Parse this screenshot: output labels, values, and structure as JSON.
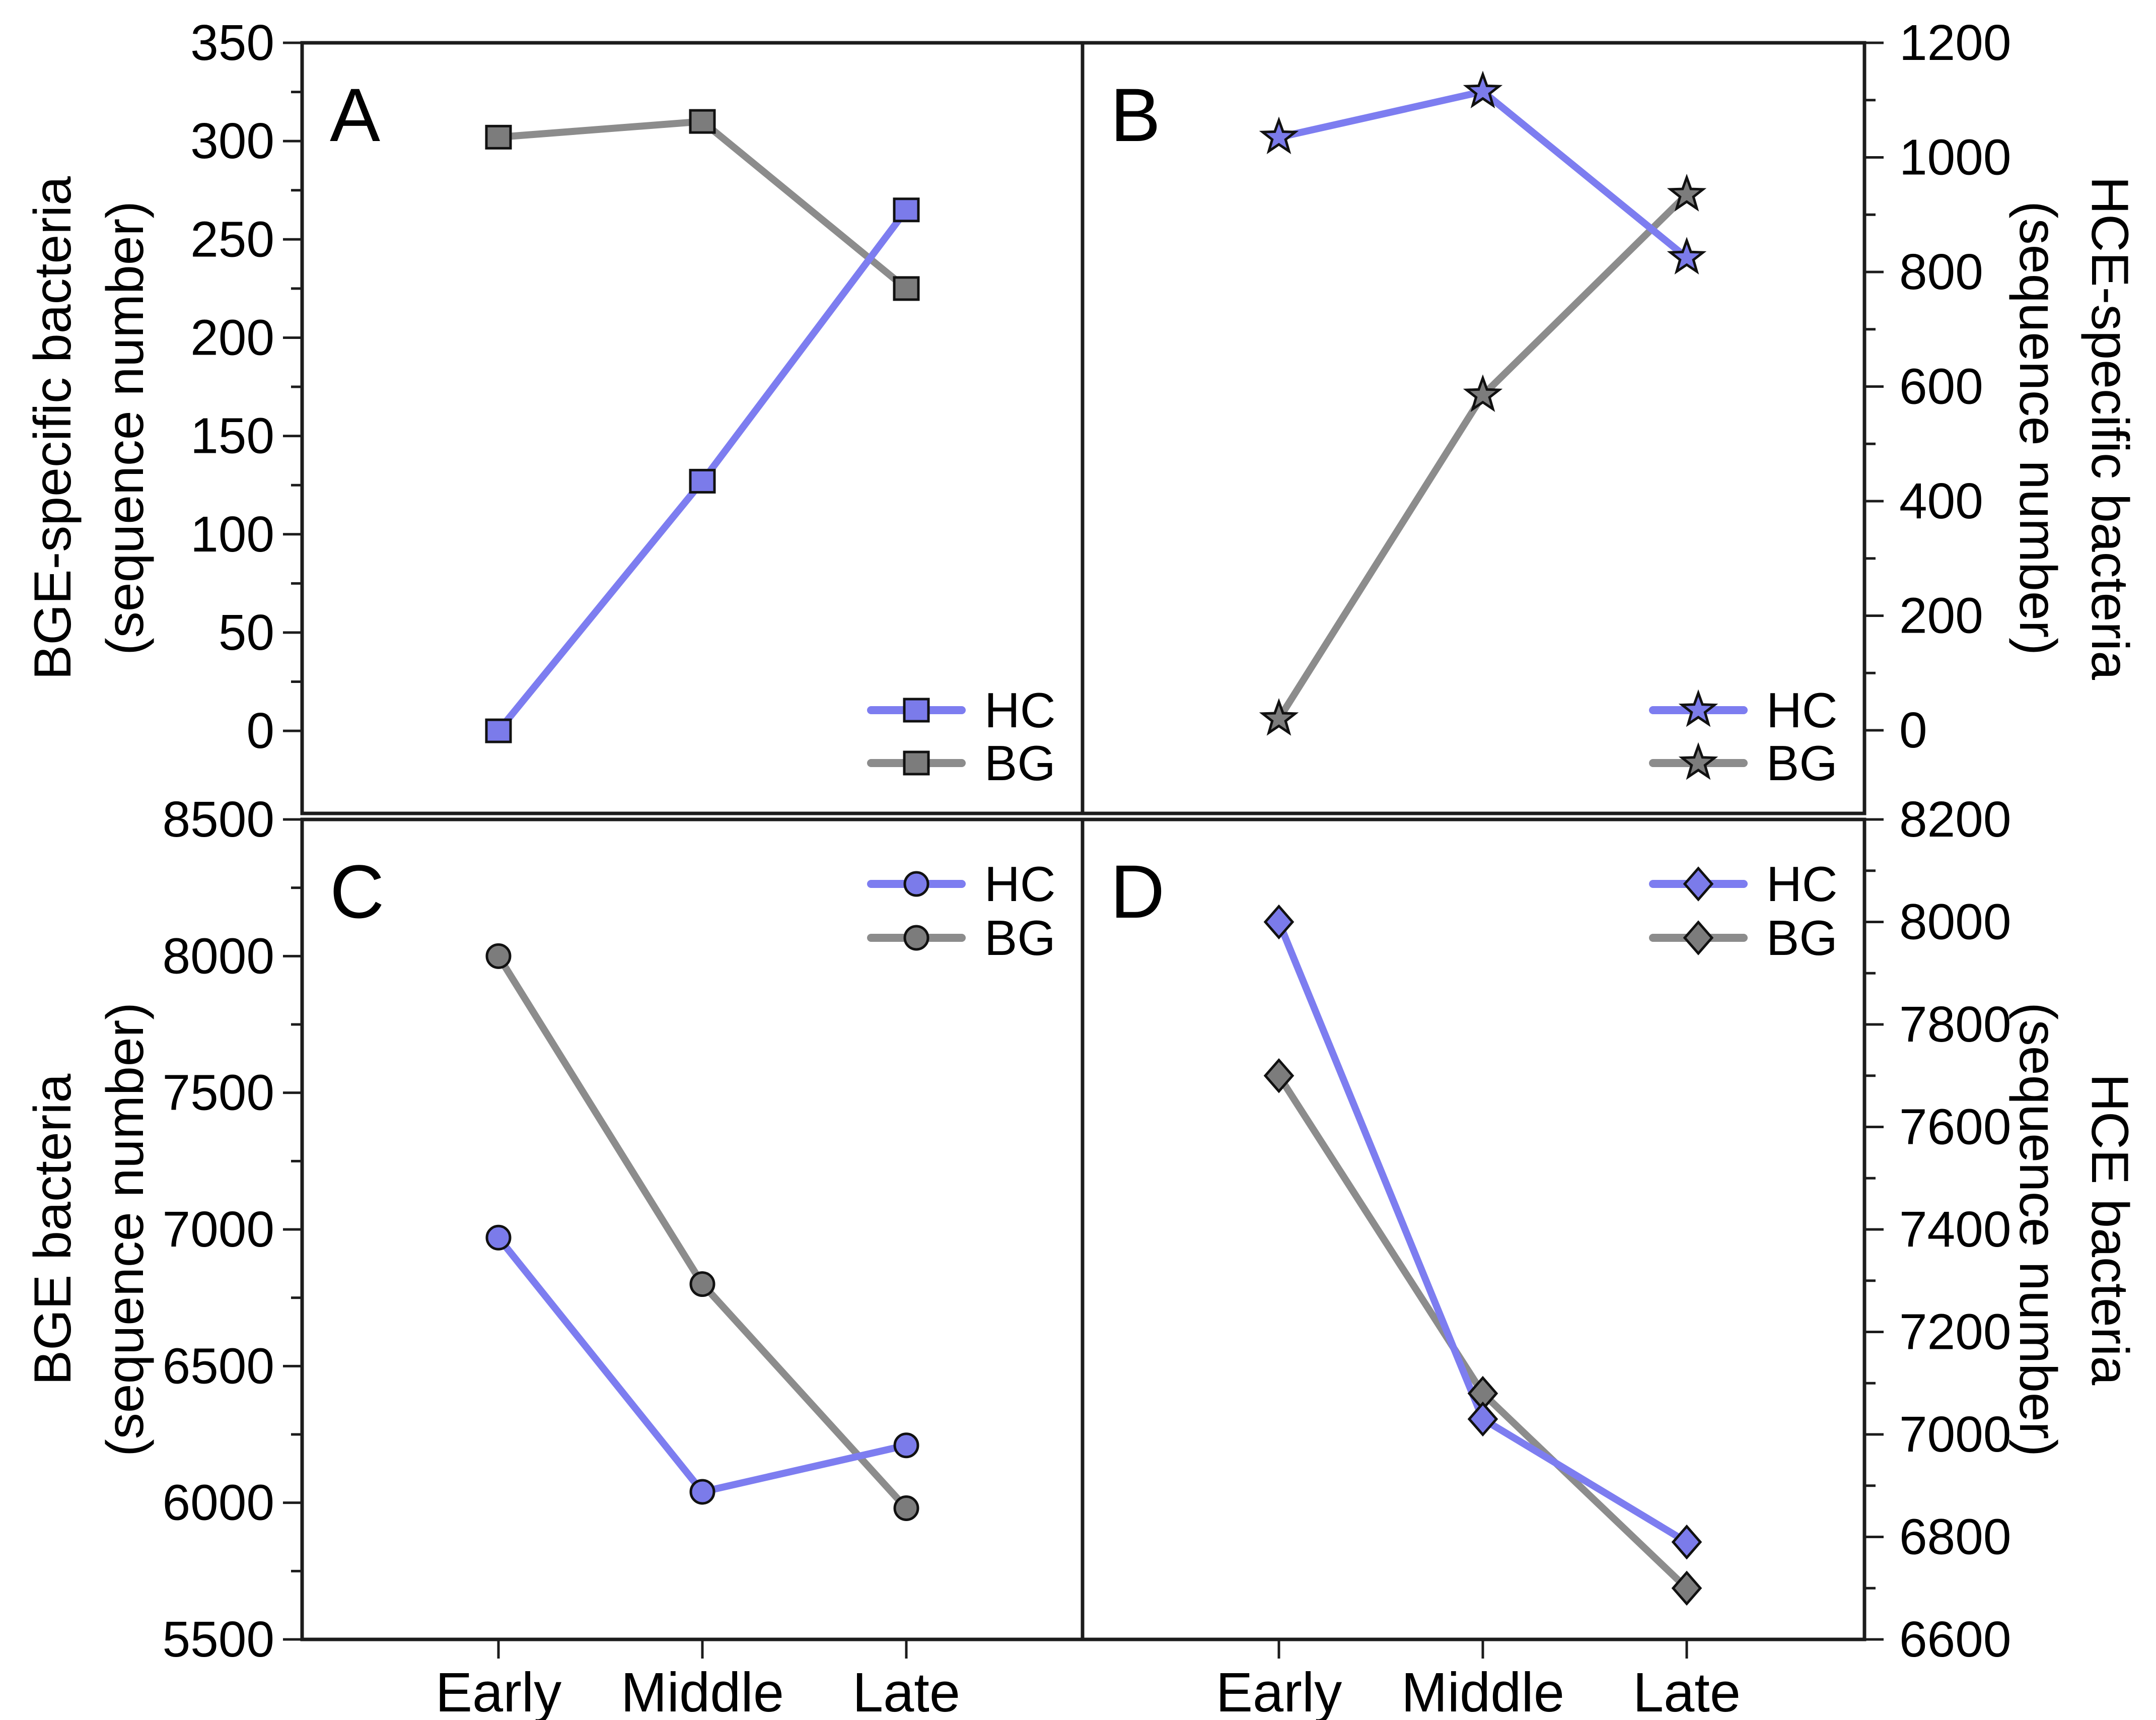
{
  "figure": {
    "background": "#ffffff",
    "frame_color": "#1c1c1c",
    "text_color": "#000000"
  },
  "colors": {
    "hc_line": "#7d7df0",
    "hc_fill": "#7b7bea",
    "bg_line": "#8c8c8c",
    "bg_fill": "#7c7c7c",
    "marker_edge": "#111111"
  },
  "x_categories": [
    "Early",
    "Middle",
    "Late"
  ],
  "chart_data": [
    {
      "panel": "A",
      "type": "line",
      "marker": "square",
      "yaxis_side": "left",
      "ylabel": [
        "BGE-specific bacteria",
        "(sequence number)"
      ],
      "yticks": [
        350,
        300,
        250,
        200,
        150,
        100,
        50,
        0
      ],
      "ylim": [
        -42,
        350
      ],
      "grid": false,
      "legend_position": "bottom-right",
      "series": [
        {
          "name": "HC",
          "values": [
            0,
            127,
            265
          ]
        },
        {
          "name": "BG",
          "values": [
            302,
            310,
            225
          ]
        }
      ]
    },
    {
      "panel": "B",
      "type": "line",
      "marker": "star",
      "yaxis_side": "right",
      "ylabel": [
        "HCE-specific bacteria",
        "(sequence number)"
      ],
      "yticks": [
        1200,
        1000,
        800,
        600,
        400,
        200,
        0
      ],
      "ylim": [
        -145,
        1200
      ],
      "grid": false,
      "legend_position": "bottom-right",
      "series": [
        {
          "name": "HC",
          "values": [
            1035,
            1115,
            825
          ]
        },
        {
          "name": "BG",
          "values": [
            20,
            585,
            935
          ]
        }
      ]
    },
    {
      "panel": "C",
      "type": "line",
      "marker": "circle",
      "yaxis_side": "left",
      "ylabel": [
        "BGE bacteria",
        "(sequence number)"
      ],
      "yticks": [
        8500,
        8000,
        7500,
        7000,
        6500,
        6000,
        5500
      ],
      "ylim": [
        5500,
        8500
      ],
      "grid": false,
      "legend_position": "top-right",
      "series": [
        {
          "name": "HC",
          "values": [
            6970,
            6040,
            6210
          ]
        },
        {
          "name": "BG",
          "values": [
            8000,
            6800,
            5980
          ]
        }
      ]
    },
    {
      "panel": "D",
      "type": "line",
      "marker": "diamond",
      "yaxis_side": "right",
      "ylabel": [
        "HCE bacteria",
        "(sequence number)"
      ],
      "yticks": [
        8200,
        8000,
        7800,
        7600,
        7400,
        7200,
        7000,
        6800,
        6600
      ],
      "ylim": [
        6600,
        8200
      ],
      "grid": false,
      "legend_position": "top-right",
      "series": [
        {
          "name": "HC",
          "values": [
            8000,
            7030,
            6790
          ]
        },
        {
          "name": "BG",
          "values": [
            7700,
            7080,
            6700
          ]
        }
      ]
    }
  ]
}
